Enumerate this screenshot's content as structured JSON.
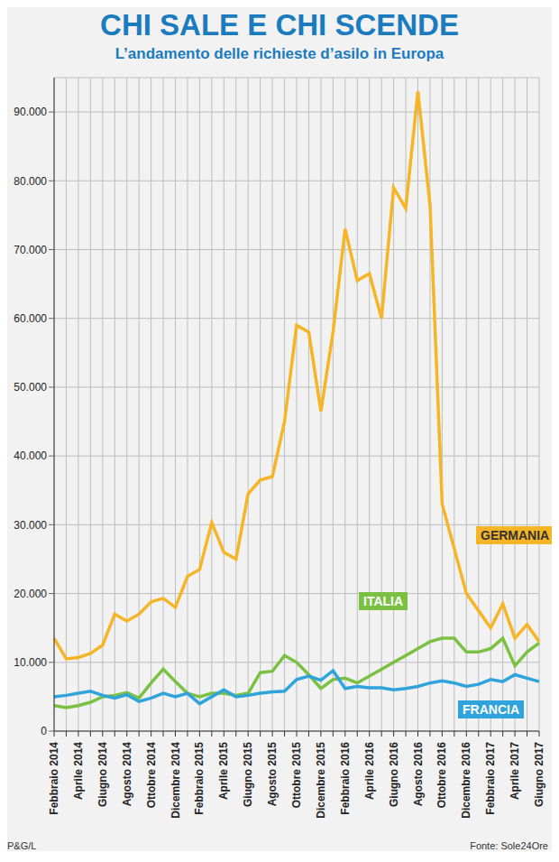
{
  "chart_data": {
    "type": "line",
    "title": "CHI SALE E CHI SCENDE",
    "subtitle": "L’andamento delle richieste d’asilo in Europa",
    "credit": "P&G/L",
    "source": "Fonte: Sole24Ore",
    "categories": [
      "Febbraio 2014",
      null,
      "Aprile 2014",
      null,
      "Giugno 2014",
      null,
      "Agosto 2014",
      null,
      "Ottobre 2014",
      null,
      "Dicembre 2014",
      null,
      "Febbraio 2015",
      null,
      "Aprile 2015",
      null,
      "Giugno 2015",
      null,
      "Agosto 2015",
      null,
      "Ottobre 2015",
      null,
      "Dicembre 2015",
      null,
      "Febbraio 2016",
      null,
      "Aprile 2016",
      null,
      "Giugno 2016",
      null,
      "Agosto 2016",
      null,
      "Ottobre 2016",
      null,
      "Dicembre 2016",
      null,
      "Febbraio 2017",
      null,
      "Aprile 2017",
      null,
      "Giugno 2017"
    ],
    "series": [
      {
        "name": "GERMANIA",
        "color": "#f5b526",
        "values": [
          13500,
          10500,
          10700,
          11300,
          12500,
          17000,
          16000,
          17000,
          18800,
          19300,
          18000,
          22500,
          23500,
          30300,
          26000,
          25000,
          34500,
          36500,
          37000,
          45000,
          59000,
          58000,
          46500,
          58000,
          73000,
          65500,
          66500,
          60000,
          79000,
          76000,
          93000,
          76500,
          33000,
          26500,
          20000,
          17500,
          15000,
          18500,
          13500,
          15500,
          13000
        ]
      },
      {
        "name": "ITALIA",
        "color": "#7ac143",
        "values": [
          3700,
          3400,
          3700,
          4200,
          5000,
          5200,
          5600,
          4800,
          7000,
          9000,
          7200,
          5500,
          5000,
          5500,
          5500,
          5200,
          5500,
          8500,
          8700,
          11000,
          10000,
          8200,
          6200,
          7500,
          7700,
          7000,
          8000,
          9000,
          10000,
          11000,
          12000,
          13000,
          13500,
          13500,
          11500,
          11500,
          12000,
          13500,
          9500,
          11500,
          12800
        ]
      },
      {
        "name": "FRANCIA",
        "color": "#2fa3dc",
        "values": [
          5000,
          5200,
          5500,
          5800,
          5200,
          4800,
          5300,
          4300,
          4800,
          5500,
          5000,
          5500,
          4000,
          5000,
          6000,
          5000,
          5200,
          5500,
          5700,
          5800,
          7500,
          8000,
          7400,
          8800,
          6200,
          6500,
          6300,
          6300,
          6000,
          6200,
          6500,
          7000,
          7300,
          7000,
          6500,
          6800,
          7500,
          7200,
          8200,
          7700,
          7200
        ]
      }
    ],
    "ylim": [
      0,
      95000
    ],
    "yticks": [
      0,
      {
        "value": 10000,
        "label": "10.000"
      },
      {
        "value": 20000,
        "label": "20.000"
      },
      {
        "value": 30000,
        "label": "30.000"
      },
      {
        "value": 40000,
        "label": "40.000"
      },
      {
        "value": 50000,
        "label": "50.000"
      },
      {
        "value": 60000,
        "label": "60.000"
      },
      {
        "value": 70000,
        "label": "70.000"
      },
      {
        "value": 80000,
        "label": "80.000"
      },
      {
        "value": 90000,
        "label": "90.000"
      }
    ],
    "grid": true
  }
}
